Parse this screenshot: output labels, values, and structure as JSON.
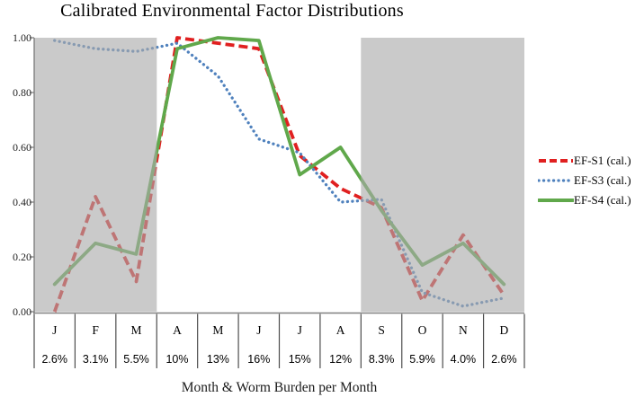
{
  "title": "Calibrated Environmental Factor Distributions",
  "chart_data": {
    "type": "line",
    "categories": [
      "J",
      "F",
      "M",
      "A",
      "M",
      "J",
      "J",
      "A",
      "S",
      "O",
      "N",
      "D"
    ],
    "category_sublabels": [
      "2.6%",
      "3.1%",
      "5.5%",
      "10%",
      "13%",
      "16%",
      "15%",
      "12%",
      "8.3%",
      "5.9%",
      "4.0%",
      "2.6%"
    ],
    "series": [
      {
        "name": "EF-S1 (cal.)",
        "color": "#e02020",
        "style": "dashed",
        "values": [
          0.0,
          0.42,
          0.11,
          1.0,
          0.98,
          0.96,
          0.57,
          0.45,
          0.38,
          0.04,
          0.28,
          0.06
        ]
      },
      {
        "name": "EF-S3 (cal.)",
        "color": "#4f81bd",
        "style": "dotted",
        "values": [
          0.99,
          0.96,
          0.95,
          0.98,
          0.86,
          0.63,
          0.58,
          0.4,
          0.41,
          0.07,
          0.02,
          0.05
        ]
      },
      {
        "name": "EF-S4 (cal.)",
        "color": "#60a84b",
        "style": "solid",
        "values": [
          0.1,
          0.25,
          0.21,
          0.96,
          1.0,
          0.99,
          0.5,
          0.6,
          0.37,
          0.17,
          0.25,
          0.1
        ]
      }
    ],
    "xlabel": "Month & Worm Burden per Month",
    "ylabel": "",
    "ylim": [
      0,
      1
    ],
    "yticks": [
      "1.00",
      "0.80",
      "0.60",
      "0.40",
      "0.20",
      "0.00"
    ],
    "grid": false,
    "legend_position": "right",
    "shaded_month_ranges": [
      [
        0,
        2
      ],
      [
        8,
        11
      ]
    ],
    "shade_color": "#a9a9a9"
  }
}
